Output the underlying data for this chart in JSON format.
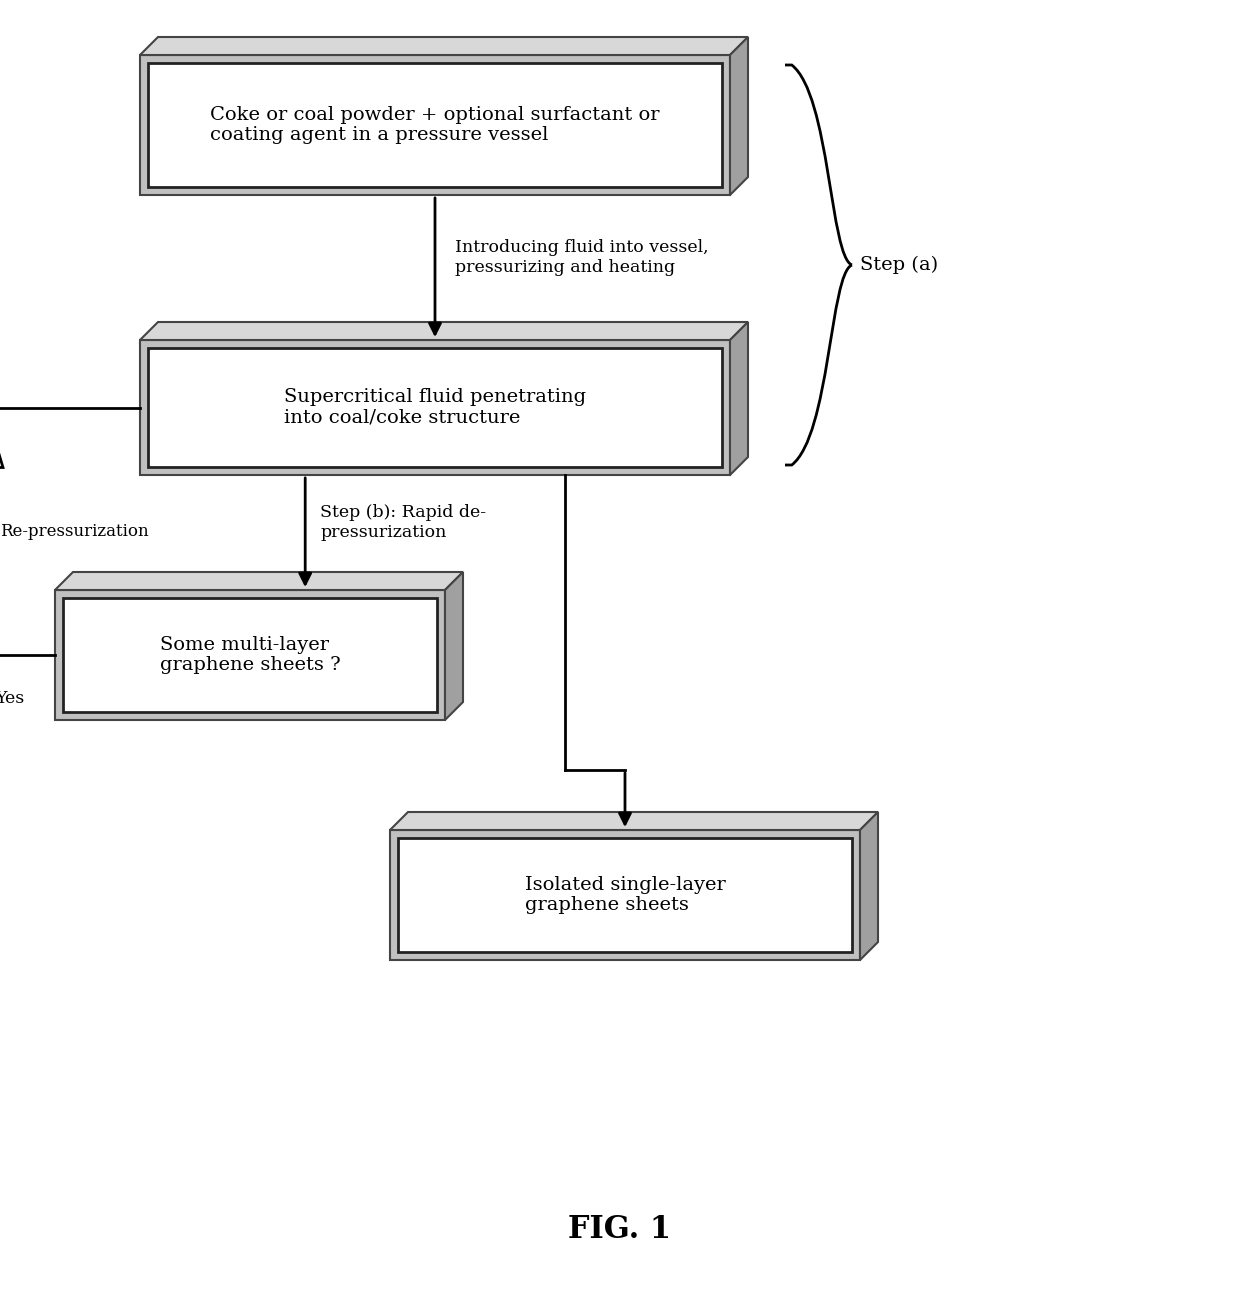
{
  "title": "FIG. 1",
  "title_fontsize": 22,
  "title_fontweight": "bold",
  "background_color": "#ffffff",
  "box1_text": "Coke or coal powder + optional surfactant or\ncoating agent in a pressure vessel",
  "box2_text": "Supercritical fluid penetrating\ninto coal/coke structure",
  "box3_text": "Some multi-layer\ngraphene sheets ?",
  "box4_text": "Isolated single-layer\ngraphene sheets",
  "label_arrow1": "Introducing fluid into vessel,\npressurizing and heating",
  "label_arrow2": "Step (b): Rapid de-\npressurization",
  "label_repressurization": "Re-pressurization",
  "label_yes": "Yes",
  "label_step_a": "Step (a)",
  "box_gray": "#b0b0b0",
  "box_dark": "#666666",
  "box_white": "#ffffff",
  "font_size": 14,
  "fig_font_size": 22
}
